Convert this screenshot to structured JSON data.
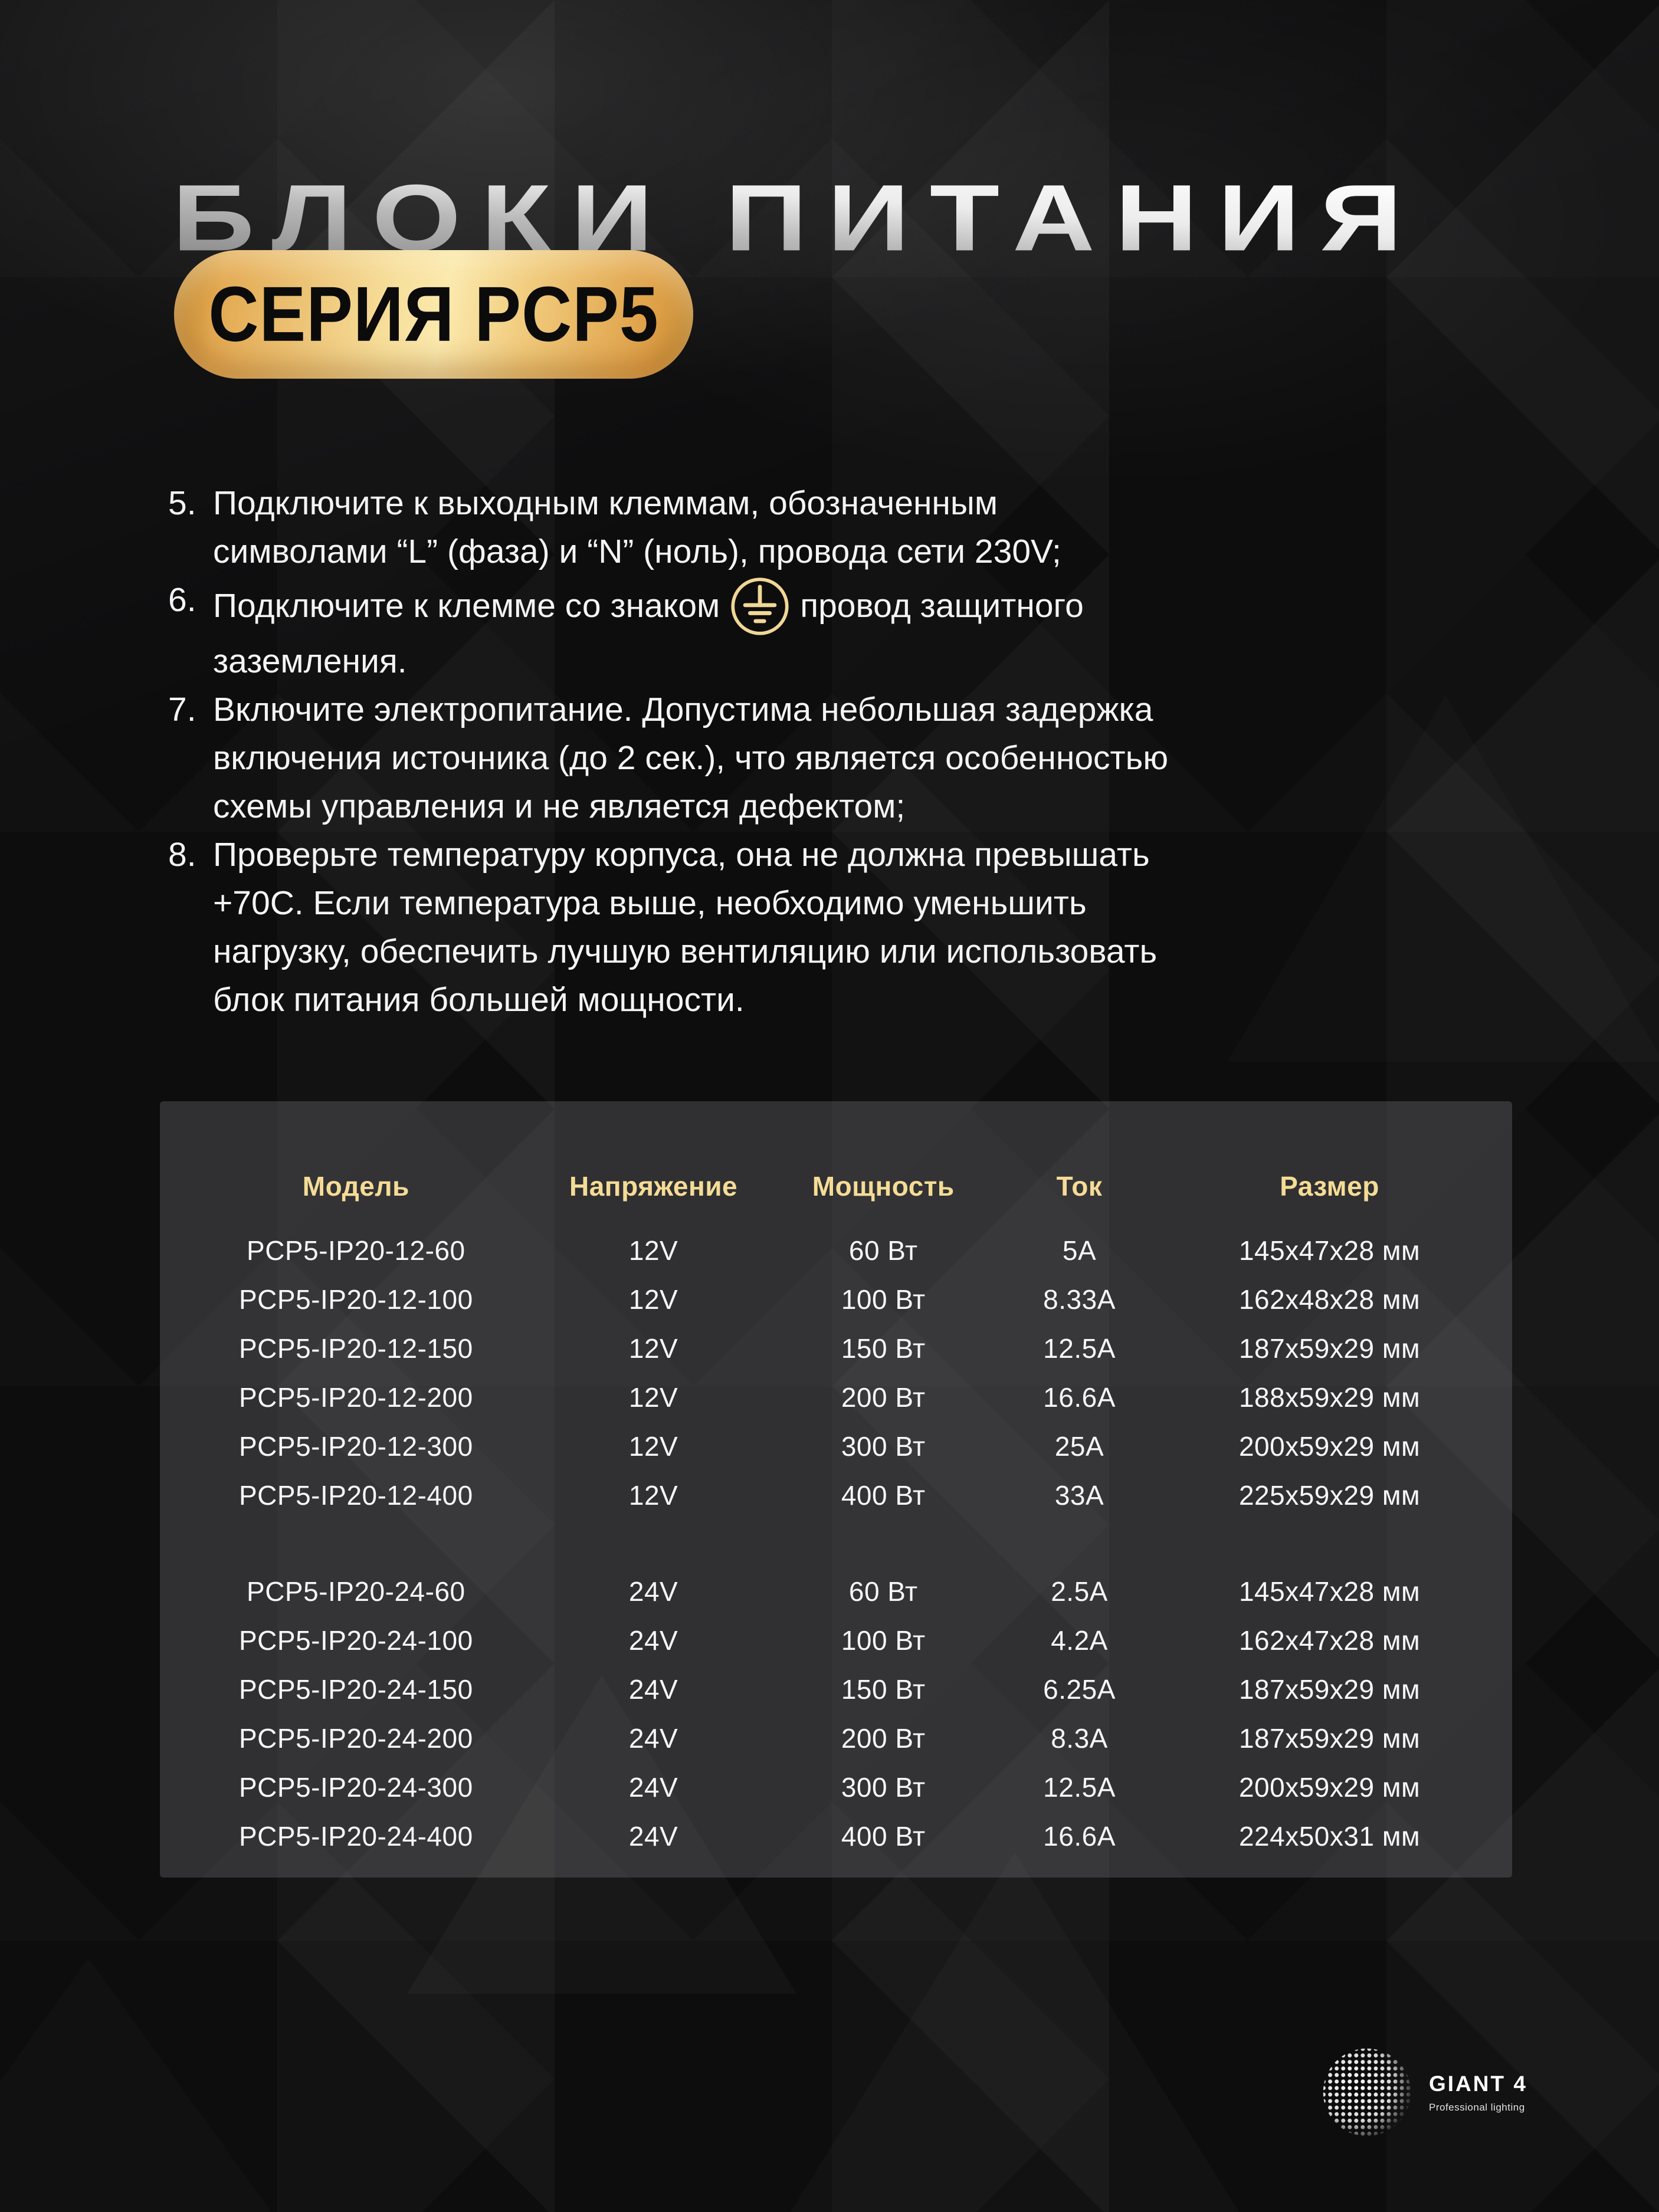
{
  "page": {
    "title": "БЛОКИ ПИТАНИЯ",
    "badge": "СЕРИЯ PCP5"
  },
  "instructions": {
    "items": [
      {
        "num": "5.",
        "text": "Подключите к выходным клеммам, обозначенным\nсимволами “L” (фаза) и “N” (ноль), провода сети 230V;"
      },
      {
        "num": "6.",
        "text_before_icon": "Подключите к клемме со знаком",
        "icon": "ground-earth-icon",
        "text_after_icon": "провод защитного\nзаземления."
      },
      {
        "num": "7.",
        "text": "Включите электропитание. Допустима небольшая задержка\nвключения источника (до 2 сек.), что является особенностью\nсхемы управления и не является дефектом;"
      },
      {
        "num": "8.",
        "text": "Проверьте температуру корпуса, она не должна превышать\n+70C. Если температура выше, необходимо уменьшить\nнагрузку, обеспечить лучшую вентиляцию или использовать\nблок питания большей мощности."
      }
    ]
  },
  "table": {
    "headers": [
      "Модель",
      "Напряжение",
      "Мощность",
      "Ток",
      "Размер"
    ],
    "groups": [
      {
        "rows": [
          [
            "PCP5-IP20-12-60",
            "12V",
            "60 Вт",
            "5A",
            "145x47x28 мм"
          ],
          [
            "PCP5-IP20-12-100",
            "12V",
            "100 Вт",
            "8.33A",
            "162x48x28 мм"
          ],
          [
            "PCP5-IP20-12-150",
            "12V",
            "150 Вт",
            "12.5A",
            "187x59x29 мм"
          ],
          [
            "PCP5-IP20-12-200",
            "12V",
            "200 Вт",
            "16.6A",
            "188x59x29 мм"
          ],
          [
            "PCP5-IP20-12-300",
            "12V",
            "300 Вт",
            "25A",
            "200x59x29 мм"
          ],
          [
            "PCP5-IP20-12-400",
            "12V",
            "400 Вт",
            "33A",
            "225x59x29 мм"
          ]
        ]
      },
      {
        "rows": [
          [
            "PCP5-IP20-24-60",
            "24V",
            "60 Вт",
            "2.5A",
            "145x47x28 мм"
          ],
          [
            "PCP5-IP20-24-100",
            "24V",
            "100 Вт",
            "4.2A",
            "162x47x28 мм"
          ],
          [
            "PCP5-IP20-24-150",
            "24V",
            "150 Вт",
            "6.25A",
            "187x59x29 мм"
          ],
          [
            "PCP5-IP20-24-200",
            "24V",
            "200 Вт",
            "8.3A",
            "187x59x29 мм"
          ],
          [
            "PCP5-IP20-24-300",
            "24V",
            "300 Вт",
            "12.5A",
            "200x59x29 мм"
          ],
          [
            "PCP5-IP20-24-400",
            "24V",
            "400 Вт",
            "16.6A",
            "224x50x31 мм"
          ]
        ]
      }
    ]
  },
  "logo": {
    "name": "GIANT 4",
    "tagline": "Professional lighting"
  },
  "colors": {
    "accent_gold_text": "#f5dc96",
    "accent_gold_icon": "#f0d795",
    "badge_gold_light": "#fbe9ad",
    "badge_gold_dark": "#c98f33",
    "panel_gray": "#343537",
    "background": "#0d0d0e",
    "body_text": "#f4f4f4"
  }
}
